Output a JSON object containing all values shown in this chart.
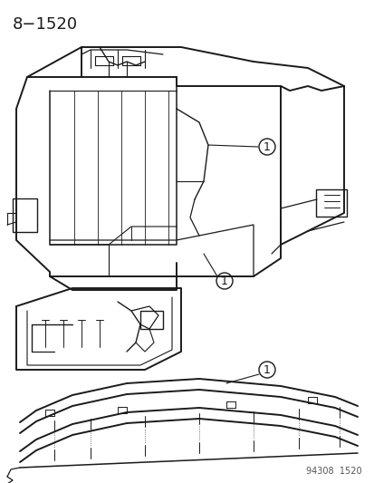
{
  "title": "8−1520",
  "footer": "94308  1520",
  "bg_color": "#ffffff",
  "line_color": "#1a1a1a",
  "title_fontsize": 13,
  "footer_fontsize": 7,
  "label_fontsize": 9,
  "fig_width": 4.14,
  "fig_height": 5.33,
  "dpi": 100
}
